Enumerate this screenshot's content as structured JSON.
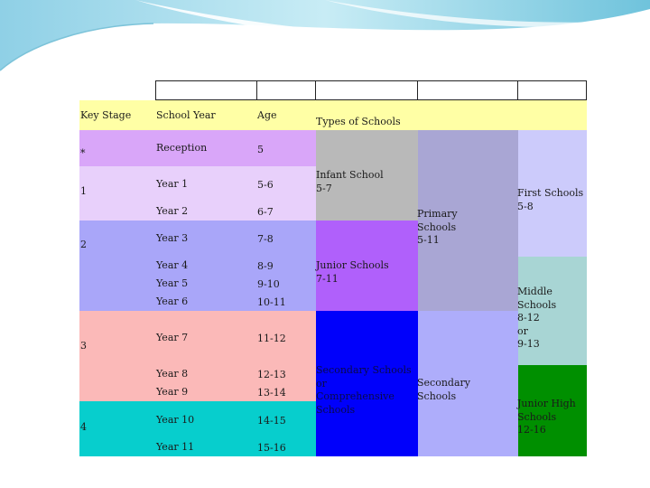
{
  "colors": {
    "header_bg": "#ffffa5",
    "stage_fs": "#d9a6f9",
    "stage_1": "#e8d0fb",
    "stage_2": "#a9a6f9",
    "stage_3": "#fbb9b8",
    "stage_4": "#07cecd",
    "infant": "#b9b9b9",
    "junior": "#b060fb",
    "secondary_modern": "#0000fb",
    "primary": "#a9a6d4",
    "secondary": "#aeadfb",
    "first": "#cccbfb",
    "middle": "#a8d5d4",
    "junior_high": "#008f00"
  },
  "table": {
    "headers": {
      "key_stage": "Key Stage",
      "school_year": "School Year",
      "age": "Age",
      "types": "Types of Schools"
    },
    "key_stages": [
      "*",
      "1",
      "2",
      "3",
      "4"
    ],
    "rows": [
      {
        "year": "Reception",
        "age": "5"
      },
      {
        "year": "Year 1",
        "age": "5-6"
      },
      {
        "year": "Year 2",
        "age": "6-7"
      },
      {
        "year": "Year 3",
        "age": "7-8"
      },
      {
        "year": "Year 4",
        "age": "8-9"
      },
      {
        "year": "Year 5",
        "age": "9-10"
      },
      {
        "year": "Year 6",
        "age": "10-11"
      },
      {
        "year": "Year 7",
        "age": "11-12"
      },
      {
        "year": "Year 8",
        "age": "12-13"
      },
      {
        "year": "Year 9",
        "age": "13-14"
      },
      {
        "year": "Year 10",
        "age": "14-15"
      },
      {
        "year": "Year 11",
        "age": "15-16"
      }
    ],
    "schools": {
      "infant": [
        "Infant School",
        "5-7"
      ],
      "junior": [
        "Junior Schools",
        "7-11"
      ],
      "secondary_modern": [
        "Secondary Schools",
        "or",
        "Comprehensive",
        "Schools"
      ],
      "primary": [
        "Primary",
        "Schools",
        "5-11"
      ],
      "secondary": [
        "Secondary",
        "Schools"
      ],
      "first": [
        "First Schools",
        "5-8"
      ],
      "middle": [
        "Middle",
        "Schools",
        "8-12",
        "or",
        "9-13"
      ],
      "junior_high": [
        "Junior High",
        "Schools",
        "12-16"
      ]
    }
  }
}
